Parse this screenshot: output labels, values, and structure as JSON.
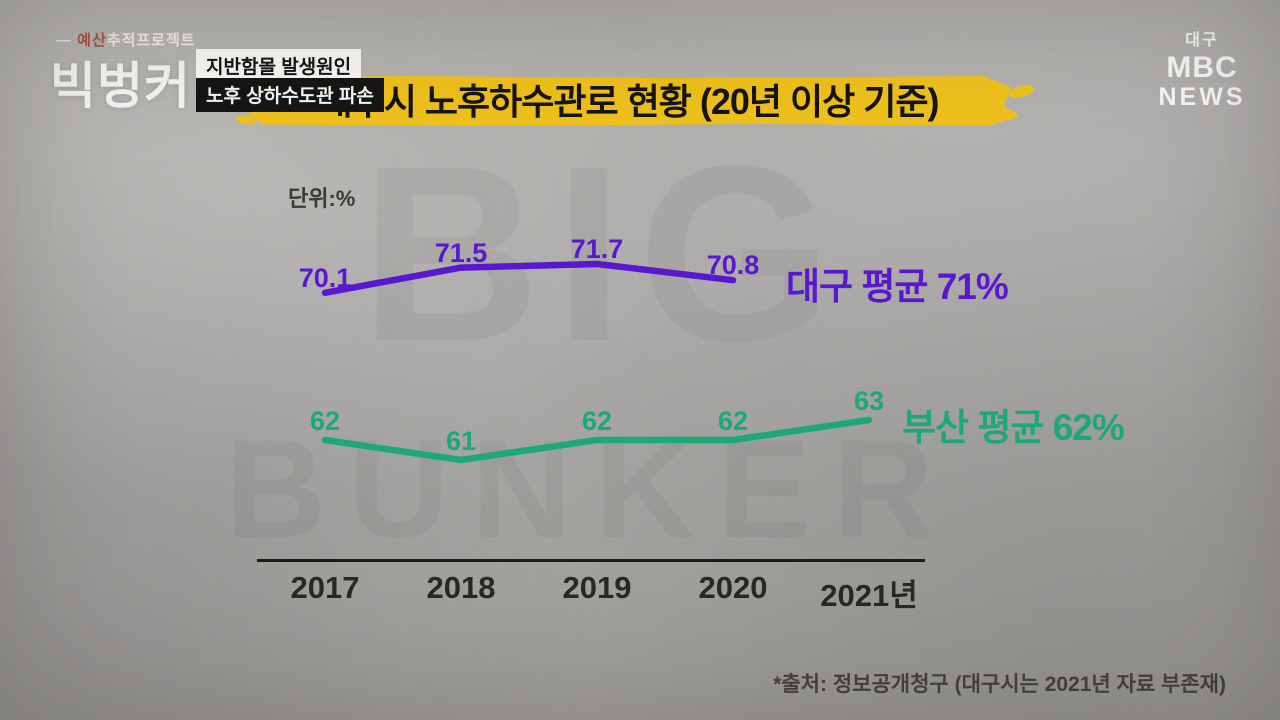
{
  "broadcast": {
    "tag_dash": "—",
    "tag_highlight": "예산",
    "tag_rest": "추적프로젝트",
    "logo": "빅벙커",
    "topic_labels": [
      "지반함몰 발생원인",
      "노후 상하수도관 파손"
    ],
    "station": {
      "region": "대구",
      "name": "MBC",
      "news": "NEWS"
    }
  },
  "title": "대구시 노후하수관로 현황 (20년 이상 기준)",
  "unit_label": "단위:%",
  "source_note": "*출처: 정보공개청구 (대구시는 2021년 자료 부존재)",
  "watermark": {
    "line1": "BIG",
    "line2": "BUNKER"
  },
  "colors": {
    "daegu_purple": "#5a18ce",
    "busan_green": "#1da878",
    "banner_yellow": "#eec01d",
    "background_gray": "#adaba8"
  },
  "chart_data": {
    "type": "line",
    "categories": [
      "2017",
      "2018",
      "2019",
      "2020",
      "2021년"
    ],
    "series": [
      {
        "name": "대구",
        "label": "대구 평균 71%",
        "color": "#5a18ce",
        "values": [
          70.1,
          71.5,
          71.7,
          70.8,
          null
        ]
      },
      {
        "name": "부산",
        "label": "부산 평균 62%",
        "color": "#1da878",
        "values": [
          62,
          61,
          62,
          62,
          63
        ]
      }
    ],
    "unit": "%",
    "ylabel": "단위:%",
    "grid": false,
    "legend_position": "inline-right"
  }
}
